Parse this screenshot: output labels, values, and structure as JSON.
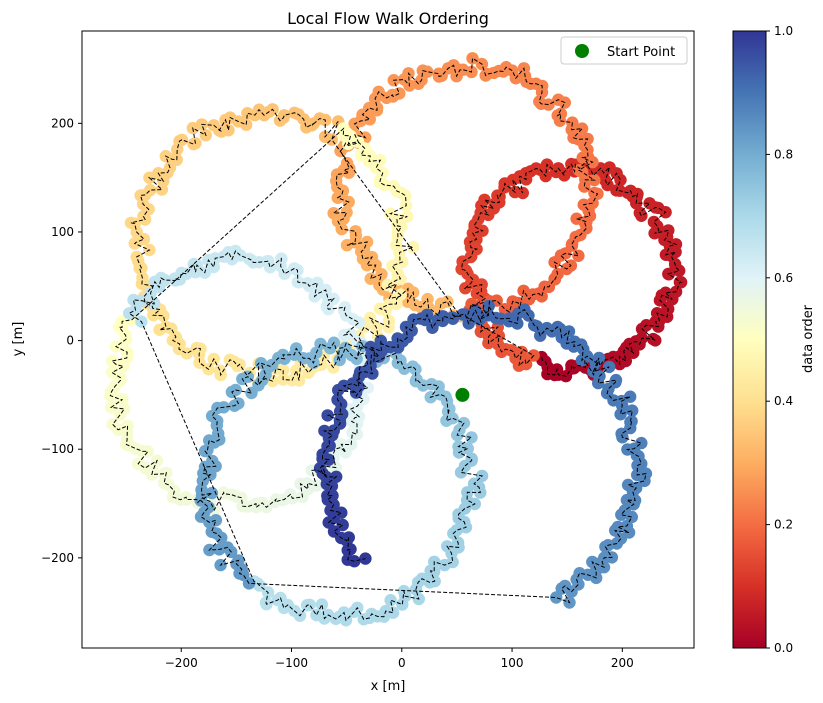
{
  "chart_data": {
    "type": "scatter",
    "title": "Local Flow Walk Ordering",
    "xlabel": "x [m]",
    "ylabel": "y [m]",
    "xlim": [
      -290,
      265
    ],
    "ylim": [
      -283,
      285
    ],
    "xticks": [
      -200,
      -100,
      0,
      100,
      200
    ],
    "yticks": [
      -200,
      -100,
      0,
      100,
      200
    ],
    "grid": false,
    "legend": {
      "position": "top-right",
      "entries": [
        {
          "label": "Start Point",
          "color": "#008000",
          "marker": "circle"
        }
      ]
    },
    "start_point": {
      "x": 55,
      "y": -50
    },
    "colorbar": {
      "label": "data order",
      "range": [
        0,
        1
      ],
      "ticks": [
        0.0,
        0.2,
        0.4,
        0.6,
        0.8,
        1.0
      ],
      "tick_labels": [
        "0.0",
        "0.2",
        "0.4",
        "0.6",
        "0.8",
        "1.0"
      ],
      "colormap": "RdYlBu",
      "stops": [
        "#a50026",
        "#d73027",
        "#f46d43",
        "#fdae61",
        "#fee090",
        "#ffffbf",
        "#e0f3f8",
        "#abd9e9",
        "#74add1",
        "#4575b4",
        "#313695"
      ]
    },
    "series": [
      {
        "order_start": 0.0,
        "order_end": 0.17,
        "center": [
          153,
          65
        ],
        "radius": 92,
        "angle_start": 250,
        "angle_span": 360
      },
      {
        "order_start": 0.17,
        "order_end": 0.33,
        "center": [
          58,
          140
        ],
        "radius": 112,
        "angle_start": 270,
        "angle_span": 360
      },
      {
        "order_start": 0.33,
        "order_end": 0.5,
        "center": [
          -118,
          88
        ],
        "radius": 120,
        "angle_start": 60,
        "angle_span": 360
      },
      {
        "order_start": 0.5,
        "order_end": 0.67,
        "center": [
          -148,
          -38
        ],
        "radius": 112,
        "angle_start": 150,
        "angle_span": 360
      },
      {
        "order_start": 0.67,
        "order_end": 0.84,
        "center": [
          -58,
          -132
        ],
        "radius": 122,
        "angle_start": 230,
        "angle_span": 360
      },
      {
        "order_start": 0.84,
        "order_end": 1.0,
        "center": [
          72,
          -115
        ],
        "radius": 140,
        "angle_start": 300,
        "angle_span": 280
      }
    ]
  }
}
